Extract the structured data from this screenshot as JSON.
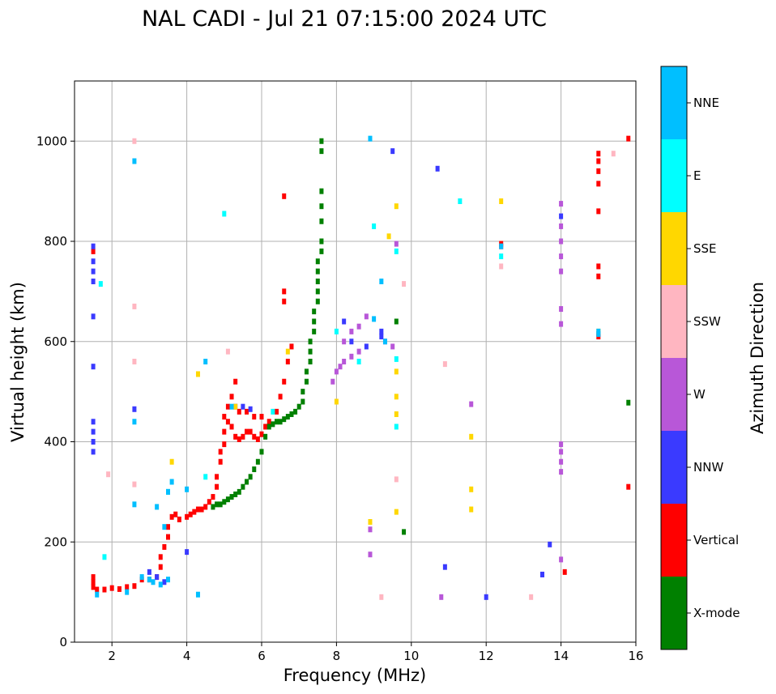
{
  "chart_data": {
    "type": "scatter",
    "title": "NAL CADI - Jul 21 07:15:00 2024 UTC",
    "xlabel": "Frequency (MHz)",
    "ylabel": "Virtual height (km)",
    "xlim": [
      1.0,
      16.0
    ],
    "ylim": [
      0,
      1120
    ],
    "xticks": [
      2,
      4,
      6,
      8,
      10,
      12,
      14,
      16
    ],
    "yticks": [
      0,
      200,
      400,
      600,
      800,
      1000
    ],
    "grid": true,
    "colorbar": {
      "title": "Azimuth Direction",
      "categories": [
        {
          "label": "X-mode",
          "color": "#008000"
        },
        {
          "label": "Vertical",
          "color": "#ff0000"
        },
        {
          "label": "NNW",
          "color": "#3a3aff"
        },
        {
          "label": "W",
          "color": "#b857d8"
        },
        {
          "label": "SSW",
          "color": "#ffb6c1"
        },
        {
          "label": "SSE",
          "color": "#ffd700"
        },
        {
          "label": "E",
          "color": "#00ffff"
        },
        {
          "label": "NNE",
          "color": "#00bfff"
        }
      ]
    },
    "series": [
      {
        "name": "Vertical",
        "color": "#ff0000",
        "points": [
          [
            1.5,
            110
          ],
          [
            1.5,
            120
          ],
          [
            1.5,
            130
          ],
          [
            1.5,
            780
          ],
          [
            1.6,
            105
          ],
          [
            1.8,
            105
          ],
          [
            2.0,
            108
          ],
          [
            2.2,
            106
          ],
          [
            2.4,
            110
          ],
          [
            2.6,
            112
          ],
          [
            2.8,
            125
          ],
          [
            3.0,
            125
          ],
          [
            3.2,
            130
          ],
          [
            3.3,
            150
          ],
          [
            3.3,
            170
          ],
          [
            3.4,
            190
          ],
          [
            3.5,
            210
          ],
          [
            3.5,
            230
          ],
          [
            3.6,
            250
          ],
          [
            3.7,
            255
          ],
          [
            3.8,
            245
          ],
          [
            4.0,
            250
          ],
          [
            4.1,
            255
          ],
          [
            4.2,
            260
          ],
          [
            4.3,
            265
          ],
          [
            4.4,
            265
          ],
          [
            4.5,
            270
          ],
          [
            4.6,
            280
          ],
          [
            4.7,
            290
          ],
          [
            4.8,
            310
          ],
          [
            4.8,
            330
          ],
          [
            4.9,
            360
          ],
          [
            4.9,
            380
          ],
          [
            5.0,
            395
          ],
          [
            5.0,
            420
          ],
          [
            5.0,
            450
          ],
          [
            5.1,
            470
          ],
          [
            5.2,
            490
          ],
          [
            5.3,
            520
          ],
          [
            5.1,
            440
          ],
          [
            5.2,
            430
          ],
          [
            5.3,
            410
          ],
          [
            5.4,
            405
          ],
          [
            5.5,
            410
          ],
          [
            5.6,
            420
          ],
          [
            5.7,
            420
          ],
          [
            5.8,
            410
          ],
          [
            5.9,
            405
          ],
          [
            6.0,
            415
          ],
          [
            6.1,
            430
          ],
          [
            5.4,
            460
          ],
          [
            5.6,
            460
          ],
          [
            5.8,
            450
          ],
          [
            6.0,
            450
          ],
          [
            6.2,
            440
          ],
          [
            6.4,
            460
          ],
          [
            6.5,
            490
          ],
          [
            6.6,
            520
          ],
          [
            6.7,
            560
          ],
          [
            6.8,
            590
          ],
          [
            6.6,
            680
          ],
          [
            6.6,
            700
          ],
          [
            6.6,
            890
          ],
          [
            14.1,
            140
          ],
          [
            15.0,
            610
          ],
          [
            15.0,
            615
          ],
          [
            15.0,
            730
          ],
          [
            15.0,
            750
          ],
          [
            15.0,
            860
          ],
          [
            15.0,
            915
          ],
          [
            15.0,
            940
          ],
          [
            15.0,
            960
          ],
          [
            15.0,
            975
          ],
          [
            15.8,
            1005
          ],
          [
            15.8,
            310
          ],
          [
            12.4,
            790
          ],
          [
            12.4,
            795
          ]
        ]
      },
      {
        "name": "X-mode",
        "color": "#008000",
        "points": [
          [
            4.7,
            270
          ],
          [
            4.8,
            275
          ],
          [
            4.9,
            275
          ],
          [
            5.0,
            280
          ],
          [
            5.1,
            285
          ],
          [
            5.2,
            290
          ],
          [
            5.3,
            295
          ],
          [
            5.4,
            300
          ],
          [
            5.5,
            310
          ],
          [
            5.6,
            320
          ],
          [
            5.7,
            330
          ],
          [
            5.8,
            345
          ],
          [
            5.9,
            360
          ],
          [
            6.0,
            380
          ],
          [
            6.1,
            410
          ],
          [
            6.2,
            430
          ],
          [
            6.3,
            435
          ],
          [
            6.4,
            440
          ],
          [
            6.5,
            440
          ],
          [
            6.6,
            445
          ],
          [
            6.7,
            450
          ],
          [
            6.8,
            455
          ],
          [
            6.9,
            460
          ],
          [
            7.0,
            470
          ],
          [
            7.1,
            480
          ],
          [
            7.1,
            500
          ],
          [
            7.2,
            520
          ],
          [
            7.2,
            540
          ],
          [
            7.3,
            560
          ],
          [
            7.3,
            580
          ],
          [
            7.3,
            600
          ],
          [
            7.4,
            620
          ],
          [
            7.4,
            640
          ],
          [
            7.4,
            660
          ],
          [
            7.5,
            680
          ],
          [
            7.5,
            700
          ],
          [
            7.5,
            720
          ],
          [
            7.5,
            740
          ],
          [
            7.5,
            760
          ],
          [
            7.6,
            780
          ],
          [
            7.6,
            800
          ],
          [
            7.6,
            840
          ],
          [
            7.6,
            870
          ],
          [
            7.6,
            900
          ],
          [
            7.6,
            980
          ],
          [
            7.6,
            1000
          ],
          [
            9.6,
            640
          ],
          [
            9.8,
            220
          ],
          [
            15.8,
            478
          ]
        ]
      },
      {
        "name": "NNW",
        "color": "#3a3aff",
        "points": [
          [
            1.5,
            380
          ],
          [
            1.5,
            400
          ],
          [
            1.5,
            420
          ],
          [
            1.5,
            440
          ],
          [
            1.5,
            550
          ],
          [
            1.5,
            650
          ],
          [
            1.5,
            720
          ],
          [
            1.5,
            740
          ],
          [
            1.5,
            760
          ],
          [
            1.5,
            790
          ],
          [
            2.6,
            465
          ],
          [
            3.0,
            140
          ],
          [
            3.2,
            130
          ],
          [
            3.4,
            120
          ],
          [
            4.0,
            180
          ],
          [
            5.3,
            470
          ],
          [
            5.5,
            470
          ],
          [
            5.7,
            465
          ],
          [
            8.2,
            640
          ],
          [
            8.4,
            600
          ],
          [
            8.8,
            590
          ],
          [
            9.2,
            610
          ],
          [
            9.2,
            620
          ],
          [
            9.5,
            980
          ],
          [
            10.7,
            945
          ],
          [
            10.9,
            150
          ],
          [
            12.0,
            90
          ],
          [
            13.5,
            135
          ],
          [
            13.7,
            195
          ],
          [
            14.0,
            850
          ]
        ]
      },
      {
        "name": "W",
        "color": "#b857d8",
        "points": [
          [
            7.9,
            520
          ],
          [
            8.0,
            540
          ],
          [
            8.1,
            550
          ],
          [
            8.2,
            560
          ],
          [
            8.4,
            570
          ],
          [
            8.6,
            580
          ],
          [
            8.2,
            600
          ],
          [
            8.4,
            620
          ],
          [
            8.6,
            630
          ],
          [
            8.8,
            650
          ],
          [
            9.3,
            600
          ],
          [
            9.5,
            590
          ],
          [
            8.9,
            175
          ],
          [
            8.9,
            225
          ],
          [
            10.8,
            90
          ],
          [
            11.6,
            475
          ],
          [
            14.0,
            165
          ],
          [
            14.0,
            340
          ],
          [
            14.0,
            360
          ],
          [
            14.0,
            380
          ],
          [
            14.0,
            395
          ],
          [
            14.0,
            635
          ],
          [
            14.0,
            665
          ],
          [
            14.0,
            740
          ],
          [
            14.0,
            770
          ],
          [
            14.0,
            800
          ],
          [
            14.0,
            830
          ],
          [
            14.0,
            875
          ],
          [
            9.6,
            795
          ]
        ]
      },
      {
        "name": "SSW",
        "color": "#ffb6c1",
        "points": [
          [
            2.6,
            1000
          ],
          [
            2.6,
            670
          ],
          [
            2.6,
            560
          ],
          [
            2.6,
            315
          ],
          [
            1.9,
            335
          ],
          [
            9.2,
            90
          ],
          [
            10.9,
            555
          ],
          [
            12.4,
            750
          ],
          [
            13.2,
            90
          ],
          [
            15.4,
            975
          ],
          [
            9.8,
            715
          ],
          [
            9.6,
            325
          ],
          [
            5.1,
            580
          ]
        ]
      },
      {
        "name": "SSE",
        "color": "#ffd700",
        "points": [
          [
            3.6,
            360
          ],
          [
            4.3,
            535
          ],
          [
            8.9,
            240
          ],
          [
            9.4,
            810
          ],
          [
            9.6,
            870
          ],
          [
            9.6,
            540
          ],
          [
            9.6,
            490
          ],
          [
            9.6,
            455
          ],
          [
            9.6,
            260
          ],
          [
            11.6,
            410
          ],
          [
            11.6,
            305
          ],
          [
            11.6,
            265
          ],
          [
            12.4,
            880
          ],
          [
            15.0,
            620
          ],
          [
            5.3,
            470
          ],
          [
            6.7,
            580
          ],
          [
            8.0,
            480
          ]
        ]
      },
      {
        "name": "E",
        "color": "#00ffff",
        "points": [
          [
            1.7,
            715
          ],
          [
            1.8,
            170
          ],
          [
            3.5,
            300
          ],
          [
            4.5,
            330
          ],
          [
            5.0,
            855
          ],
          [
            9.0,
            830
          ],
          [
            9.6,
            430
          ],
          [
            9.6,
            565
          ],
          [
            9.6,
            780
          ],
          [
            11.3,
            880
          ],
          [
            12.4,
            770
          ],
          [
            8.6,
            560
          ],
          [
            8.0,
            620
          ],
          [
            6.3,
            460
          ]
        ]
      },
      {
        "name": "NNE",
        "color": "#00bfff",
        "points": [
          [
            1.6,
            95
          ],
          [
            2.4,
            100
          ],
          [
            2.6,
            960
          ],
          [
            2.6,
            440
          ],
          [
            2.6,
            275
          ],
          [
            2.8,
            130
          ],
          [
            3.0,
            125
          ],
          [
            3.1,
            120
          ],
          [
            3.3,
            115
          ],
          [
            3.5,
            125
          ],
          [
            3.5,
            300
          ],
          [
            3.6,
            320
          ],
          [
            4.0,
            305
          ],
          [
            4.3,
            95
          ],
          [
            4.5,
            560
          ],
          [
            8.9,
            1005
          ],
          [
            9.2,
            720
          ],
          [
            9.0,
            645
          ],
          [
            9.3,
            600
          ],
          [
            12.4,
            790
          ],
          [
            15.0,
            615
          ],
          [
            15.0,
            620
          ],
          [
            3.2,
            270
          ],
          [
            3.4,
            230
          ],
          [
            5.2,
            470
          ]
        ]
      }
    ]
  }
}
